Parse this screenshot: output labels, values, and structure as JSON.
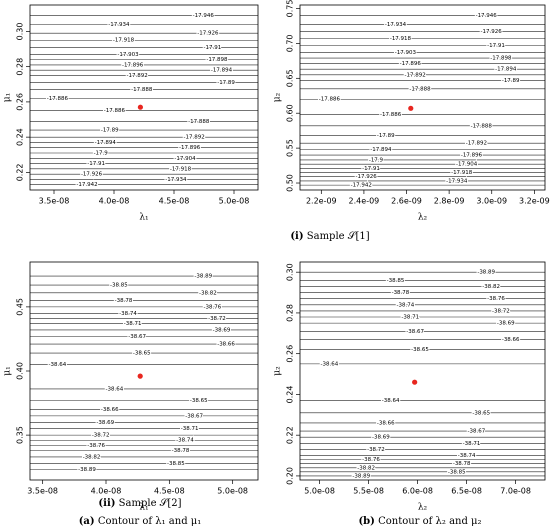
{
  "chart_data": [
    {
      "type": "contour",
      "xlabel": "λ₁",
      "ylabel": "μ₁",
      "xlim": [
        3.3e-08,
        5.2e-08
      ],
      "ylim": [
        0.21,
        0.315
      ],
      "xticks": [
        {
          "value": 3.5e-08,
          "label": "3.5e-08"
        },
        {
          "value": 4e-08,
          "label": "4.0e-08"
        },
        {
          "value": 4.5e-08,
          "label": "4.5e-08"
        },
        {
          "value": 5e-08,
          "label": "5.0e-08"
        }
      ],
      "yticks": [
        0.22,
        0.24,
        0.26,
        0.28,
        {
          "value": 0.3,
          "label": "0.30"
        }
      ],
      "point": {
        "x": 4.22e-08,
        "y": 0.257,
        "color": "#e8261f"
      },
      "contours": {
        "level_y": [
          0.262,
          0.267,
          0.271,
          0.275,
          0.278,
          0.281,
          0.284,
          0.287,
          0.291,
          0.295,
          0.299,
          0.304,
          0.309,
          0.255,
          0.249,
          0.244,
          0.24,
          0.237,
          0.234,
          0.231,
          0.228,
          0.225,
          0.222,
          0.219,
          0.216,
          0.213
        ],
        "levels": [
          -17.886,
          -17.888,
          -17.89,
          -17.892,
          -17.894,
          -17.896,
          -17.898,
          -17.903,
          -17.91,
          -17.918,
          -17.926,
          -17.934,
          -17.946,
          -17.886,
          -17.888,
          -17.89,
          -17.892,
          -17.894,
          -17.896,
          -17.9,
          -17.904,
          -17.91,
          -17.918,
          -17.926,
          -17.934,
          -17.942
        ]
      }
    },
    {
      "type": "contour",
      "xlabel": "λ₂",
      "ylabel": "μ₂",
      "xlim": [
        2.1e-09,
        3.25e-09
      ],
      "ylim": [
        0.49,
        0.755
      ],
      "xticks": [
        {
          "value": 2.2e-09,
          "label": "2.2e-09"
        },
        {
          "value": 2.4e-09,
          "label": "2.4e-09"
        },
        {
          "value": 2.6e-09,
          "label": "2.6e-09"
        },
        {
          "value": 2.8e-09,
          "label": "2.8e-09"
        },
        {
          "value": 3e-09,
          "label": "3.0e-09"
        },
        {
          "value": 3.2e-09,
          "label": "3.2e-09"
        }
      ],
      "yticks": [
        {
          "value": 0.5,
          "label": "0.50"
        },
        0.55,
        {
          "value": 0.6,
          "label": "0.60"
        },
        0.65,
        {
          "value": 0.7,
          "label": "0.70"
        },
        0.75
      ],
      "point": {
        "x": 2.62e-09,
        "y": 0.607,
        "color": "#e8261f"
      },
      "contours": {
        "level_y": [
          0.62,
          0.635,
          0.647,
          0.655,
          0.663,
          0.671,
          0.679,
          0.687,
          0.697,
          0.707,
          0.717,
          0.727,
          0.74,
          0.598,
          0.582,
          0.568,
          0.557,
          0.548,
          0.54,
          0.533,
          0.527,
          0.521,
          0.515,
          0.509,
          0.503,
          0.497
        ],
        "levels": [
          -17.886,
          -17.888,
          -17.89,
          -17.892,
          -17.894,
          -17.896,
          -17.898,
          -17.903,
          -17.91,
          -17.918,
          -17.926,
          -17.934,
          -17.946,
          -17.886,
          -17.888,
          -17.89,
          -17.892,
          -17.894,
          -17.896,
          -17.9,
          -17.904,
          -17.91,
          -17.918,
          -17.926,
          -17.934,
          -17.942
        ]
      }
    },
    {
      "type": "contour",
      "xlabel": "λ₁",
      "ylabel": "μ₁",
      "xlim": [
        3.4e-08,
        5.2e-08
      ],
      "ylim": [
        0.315,
        0.485
      ],
      "xticks": [
        {
          "value": 3.5e-08,
          "label": "3.5e-08"
        },
        {
          "value": 4e-08,
          "label": "4.0e-08"
        },
        {
          "value": 4.5e-08,
          "label": "4.5e-08"
        },
        {
          "value": 5e-08,
          "label": "5.0e-08"
        }
      ],
      "yticks": [
        0.35,
        {
          "value": 0.4,
          "label": "0.40"
        },
        0.45
      ],
      "point": {
        "x": 4.27e-08,
        "y": 0.396,
        "color": "#e8261f"
      },
      "contours": {
        "level_y": [
          0.405,
          0.414,
          0.421,
          0.427,
          0.432,
          0.437,
          0.441,
          0.445,
          0.45,
          0.455,
          0.461,
          0.467,
          0.474,
          0.386,
          0.377,
          0.37,
          0.365,
          0.36,
          0.355,
          0.35,
          0.346,
          0.342,
          0.338,
          0.333,
          0.328,
          0.323
        ],
        "levels": [
          -38.64,
          -38.65,
          -38.66,
          -38.67,
          -38.69,
          -38.71,
          -38.72,
          -38.74,
          -38.76,
          -38.78,
          -38.82,
          -38.85,
          -38.89,
          -38.64,
          -38.65,
          -38.66,
          -38.67,
          -38.69,
          -38.71,
          -38.72,
          -38.74,
          -38.76,
          -38.78,
          -38.82,
          -38.85,
          -38.89
        ]
      }
    },
    {
      "type": "contour",
      "xlabel": "λ₂",
      "ylabel": "μ₂",
      "xlim": [
        4.8e-08,
        7.3e-08
      ],
      "ylim": [
        0.198,
        0.305
      ],
      "xticks": [
        {
          "value": 5e-08,
          "label": "5.0e-08"
        },
        {
          "value": 5.5e-08,
          "label": "5.5e-08"
        },
        {
          "value": 6e-08,
          "label": "6.0e-08"
        },
        {
          "value": 6.5e-08,
          "label": "6.5e-08"
        },
        {
          "value": 7e-08,
          "label": "7.0e-08"
        }
      ],
      "yticks": [
        {
          "value": 0.2,
          "label": "0.20"
        },
        0.22,
        0.24,
        0.26,
        0.28,
        {
          "value": 0.3,
          "label": "0.30"
        }
      ],
      "point": {
        "x": 5.97e-08,
        "y": 0.246,
        "color": "#e8261f"
      },
      "contours": {
        "level_y": [
          0.255,
          0.262,
          0.267,
          0.271,
          0.275,
          0.278,
          0.281,
          0.284,
          0.287,
          0.29,
          0.293,
          0.296,
          0.3,
          0.237,
          0.231,
          0.226,
          0.222,
          0.219,
          0.216,
          0.213,
          0.21,
          0.208,
          0.206,
          0.204,
          0.202,
          0.2
        ],
        "levels": [
          -38.64,
          -38.65,
          -38.66,
          -38.67,
          -38.69,
          -38.71,
          -38.72,
          -38.74,
          -38.76,
          -38.78,
          -38.82,
          -38.85,
          -38.89,
          -38.64,
          -38.65,
          -38.66,
          -38.67,
          -38.69,
          -38.71,
          -38.72,
          -38.74,
          -38.76,
          -38.78,
          -38.82,
          -38.85,
          -38.89
        ]
      }
    }
  ],
  "captions": {
    "row1": {
      "label": "(i)",
      "text": "Sample 𝒮[1]"
    },
    "row2": {
      "label": "(ii)",
      "text": "Sample 𝒮[2]"
    },
    "col_a": {
      "label": "(a)",
      "text": "Contour of λ₁ and μ₁"
    },
    "col_b": {
      "label": "(b)",
      "text": "Contour of λ₂ and μ₂"
    }
  }
}
